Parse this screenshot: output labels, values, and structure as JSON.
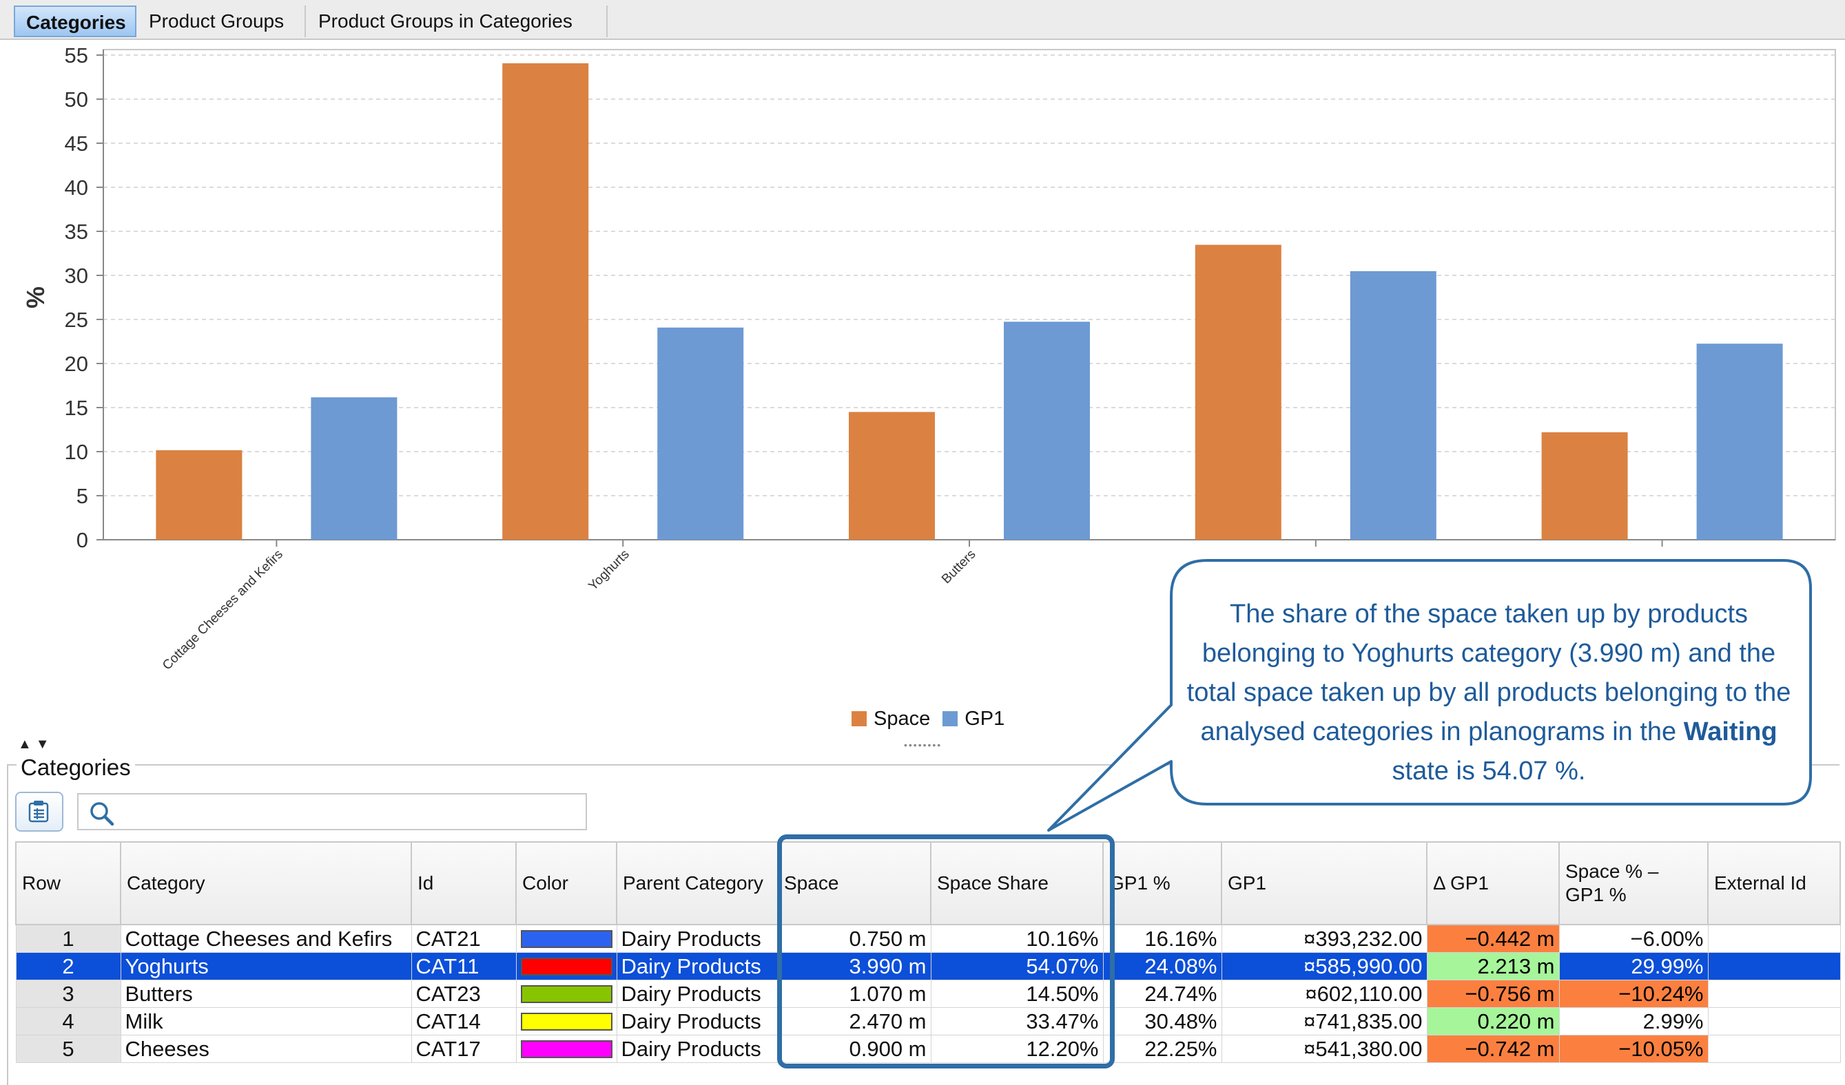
{
  "tabs": [
    {
      "label": "Categories",
      "active": true
    },
    {
      "label": "Product Groups",
      "active": false
    },
    {
      "label": "Product Groups in Categories",
      "active": false
    }
  ],
  "chart_data": {
    "type": "bar",
    "ylabel": "%",
    "ylim": [
      0,
      55
    ],
    "yticks": [
      0,
      5,
      10,
      15,
      20,
      25,
      30,
      35,
      40,
      45,
      50,
      55
    ],
    "grid": true,
    "categories": [
      "Cottage Cheeses and Kefirs",
      "Yoghurts",
      "Butters",
      "Milk",
      "Cheeses"
    ],
    "visible_category_labels": [
      "Cottage Cheeses and Kefirs",
      "Yoghurts",
      "Butters"
    ],
    "series": [
      {
        "name": "Space",
        "color": "#db8242",
        "values": [
          10.16,
          54.07,
          14.5,
          33.47,
          12.2
        ]
      },
      {
        "name": "GP1",
        "color": "#6d9ad3",
        "values": [
          16.16,
          24.08,
          24.74,
          30.48,
          22.25
        ]
      }
    ],
    "legend_position": "bottom-center"
  },
  "panel": {
    "title": "Categories",
    "search_placeholder": ""
  },
  "table": {
    "columns": [
      "Row",
      "Category",
      "Id",
      "Color",
      "Parent Category",
      "Space",
      "Space Share",
      "GP1 %",
      "GP1",
      "Δ GP1",
      "Space % – GP1 %",
      "External Id"
    ],
    "rows": [
      {
        "row": "1",
        "category": "Cottage Cheeses and Kefirs",
        "id": "CAT21",
        "color": "#2c62f0",
        "parent": "Dairy Products",
        "space": "0.750 m",
        "space_share": "10.16%",
        "gp1_pct": "16.16%",
        "gp1": "¤393,232.00",
        "delta_gp1": "−0.442 m",
        "space_minus_gp1": "−6.00%",
        "external_id": ""
      },
      {
        "row": "2",
        "category": "Yoghurts",
        "id": "CAT11",
        "color": "#ff0000",
        "parent": "Dairy Products",
        "space": "3.990 m",
        "space_share": "54.07%",
        "gp1_pct": "24.08%",
        "gp1": "¤585,990.00",
        "delta_gp1": "2.213 m",
        "space_minus_gp1": "29.99%",
        "external_id": ""
      },
      {
        "row": "3",
        "category": "Butters",
        "id": "CAT23",
        "color": "#88c400",
        "parent": "Dairy Products",
        "space": "1.070 m",
        "space_share": "14.50%",
        "gp1_pct": "24.74%",
        "gp1": "¤602,110.00",
        "delta_gp1": "−0.756 m",
        "space_minus_gp1": "−10.24%",
        "external_id": ""
      },
      {
        "row": "4",
        "category": "Milk",
        "id": "CAT14",
        "color": "#ffff00",
        "parent": "Dairy Products",
        "space": "2.470 m",
        "space_share": "33.47%",
        "gp1_pct": "30.48%",
        "gp1": "¤741,835.00",
        "delta_gp1": "0.220 m",
        "space_minus_gp1": "2.99%",
        "external_id": ""
      },
      {
        "row": "5",
        "category": "Cheeses",
        "id": "CAT17",
        "color": "#ff00ff",
        "parent": "Dairy Products",
        "space": "0.900 m",
        "space_share": "12.20%",
        "gp1_pct": "22.25%",
        "gp1": "¤541,380.00",
        "delta_gp1": "−0.742 m",
        "space_minus_gp1": "−10.05%",
        "external_id": ""
      }
    ],
    "selected_row": 1,
    "highlight_colors": {
      "negative": "#fb8040",
      "positive": "#a6f59a",
      "selection": "#0c4fd8"
    }
  },
  "callout": {
    "text_before": "The share of the space taken up by products belonging to Yoghurts category (3.990 m) and the total space taken up by all products belonging to the analysed categories in planograms in the",
    "bold": "Waiting",
    "text_after": "state is 54.07 %.",
    "color": "#2f6ea6"
  }
}
